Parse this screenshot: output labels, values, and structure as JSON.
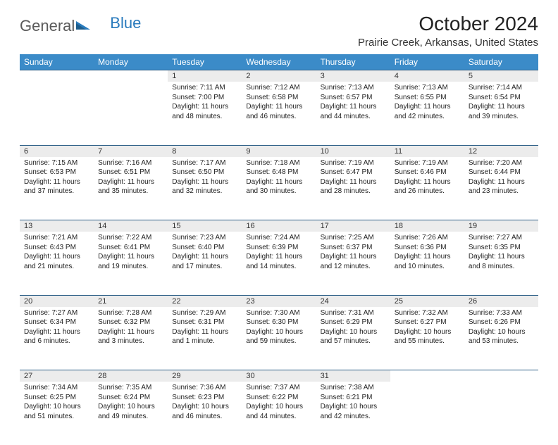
{
  "logo": {
    "part1": "General",
    "part2": "Blue"
  },
  "title": "October 2024",
  "location": "Prairie Creek, Arkansas, United States",
  "colors": {
    "header_bg": "#3b8bc8",
    "header_text": "#ffffff",
    "daynum_bg": "#ececec",
    "rule": "#2d5f87",
    "logo_gray": "#5a5a5a",
    "logo_blue": "#2a7bbd"
  },
  "weekdays": [
    "Sunday",
    "Monday",
    "Tuesday",
    "Wednesday",
    "Thursday",
    "Friday",
    "Saturday"
  ],
  "weeks": [
    [
      null,
      null,
      {
        "n": "1",
        "sr": "Sunrise: 7:11 AM",
        "ss": "Sunset: 7:00 PM",
        "dl": "Daylight: 11 hours and 48 minutes."
      },
      {
        "n": "2",
        "sr": "Sunrise: 7:12 AM",
        "ss": "Sunset: 6:58 PM",
        "dl": "Daylight: 11 hours and 46 minutes."
      },
      {
        "n": "3",
        "sr": "Sunrise: 7:13 AM",
        "ss": "Sunset: 6:57 PM",
        "dl": "Daylight: 11 hours and 44 minutes."
      },
      {
        "n": "4",
        "sr": "Sunrise: 7:13 AM",
        "ss": "Sunset: 6:55 PM",
        "dl": "Daylight: 11 hours and 42 minutes."
      },
      {
        "n": "5",
        "sr": "Sunrise: 7:14 AM",
        "ss": "Sunset: 6:54 PM",
        "dl": "Daylight: 11 hours and 39 minutes."
      }
    ],
    [
      {
        "n": "6",
        "sr": "Sunrise: 7:15 AM",
        "ss": "Sunset: 6:53 PM",
        "dl": "Daylight: 11 hours and 37 minutes."
      },
      {
        "n": "7",
        "sr": "Sunrise: 7:16 AM",
        "ss": "Sunset: 6:51 PM",
        "dl": "Daylight: 11 hours and 35 minutes."
      },
      {
        "n": "8",
        "sr": "Sunrise: 7:17 AM",
        "ss": "Sunset: 6:50 PM",
        "dl": "Daylight: 11 hours and 32 minutes."
      },
      {
        "n": "9",
        "sr": "Sunrise: 7:18 AM",
        "ss": "Sunset: 6:48 PM",
        "dl": "Daylight: 11 hours and 30 minutes."
      },
      {
        "n": "10",
        "sr": "Sunrise: 7:19 AM",
        "ss": "Sunset: 6:47 PM",
        "dl": "Daylight: 11 hours and 28 minutes."
      },
      {
        "n": "11",
        "sr": "Sunrise: 7:19 AM",
        "ss": "Sunset: 6:46 PM",
        "dl": "Daylight: 11 hours and 26 minutes."
      },
      {
        "n": "12",
        "sr": "Sunrise: 7:20 AM",
        "ss": "Sunset: 6:44 PM",
        "dl": "Daylight: 11 hours and 23 minutes."
      }
    ],
    [
      {
        "n": "13",
        "sr": "Sunrise: 7:21 AM",
        "ss": "Sunset: 6:43 PM",
        "dl": "Daylight: 11 hours and 21 minutes."
      },
      {
        "n": "14",
        "sr": "Sunrise: 7:22 AM",
        "ss": "Sunset: 6:41 PM",
        "dl": "Daylight: 11 hours and 19 minutes."
      },
      {
        "n": "15",
        "sr": "Sunrise: 7:23 AM",
        "ss": "Sunset: 6:40 PM",
        "dl": "Daylight: 11 hours and 17 minutes."
      },
      {
        "n": "16",
        "sr": "Sunrise: 7:24 AM",
        "ss": "Sunset: 6:39 PM",
        "dl": "Daylight: 11 hours and 14 minutes."
      },
      {
        "n": "17",
        "sr": "Sunrise: 7:25 AM",
        "ss": "Sunset: 6:37 PM",
        "dl": "Daylight: 11 hours and 12 minutes."
      },
      {
        "n": "18",
        "sr": "Sunrise: 7:26 AM",
        "ss": "Sunset: 6:36 PM",
        "dl": "Daylight: 11 hours and 10 minutes."
      },
      {
        "n": "19",
        "sr": "Sunrise: 7:27 AM",
        "ss": "Sunset: 6:35 PM",
        "dl": "Daylight: 11 hours and 8 minutes."
      }
    ],
    [
      {
        "n": "20",
        "sr": "Sunrise: 7:27 AM",
        "ss": "Sunset: 6:34 PM",
        "dl": "Daylight: 11 hours and 6 minutes."
      },
      {
        "n": "21",
        "sr": "Sunrise: 7:28 AM",
        "ss": "Sunset: 6:32 PM",
        "dl": "Daylight: 11 hours and 3 minutes."
      },
      {
        "n": "22",
        "sr": "Sunrise: 7:29 AM",
        "ss": "Sunset: 6:31 PM",
        "dl": "Daylight: 11 hours and 1 minute."
      },
      {
        "n": "23",
        "sr": "Sunrise: 7:30 AM",
        "ss": "Sunset: 6:30 PM",
        "dl": "Daylight: 10 hours and 59 minutes."
      },
      {
        "n": "24",
        "sr": "Sunrise: 7:31 AM",
        "ss": "Sunset: 6:29 PM",
        "dl": "Daylight: 10 hours and 57 minutes."
      },
      {
        "n": "25",
        "sr": "Sunrise: 7:32 AM",
        "ss": "Sunset: 6:27 PM",
        "dl": "Daylight: 10 hours and 55 minutes."
      },
      {
        "n": "26",
        "sr": "Sunrise: 7:33 AM",
        "ss": "Sunset: 6:26 PM",
        "dl": "Daylight: 10 hours and 53 minutes."
      }
    ],
    [
      {
        "n": "27",
        "sr": "Sunrise: 7:34 AM",
        "ss": "Sunset: 6:25 PM",
        "dl": "Daylight: 10 hours and 51 minutes."
      },
      {
        "n": "28",
        "sr": "Sunrise: 7:35 AM",
        "ss": "Sunset: 6:24 PM",
        "dl": "Daylight: 10 hours and 49 minutes."
      },
      {
        "n": "29",
        "sr": "Sunrise: 7:36 AM",
        "ss": "Sunset: 6:23 PM",
        "dl": "Daylight: 10 hours and 46 minutes."
      },
      {
        "n": "30",
        "sr": "Sunrise: 7:37 AM",
        "ss": "Sunset: 6:22 PM",
        "dl": "Daylight: 10 hours and 44 minutes."
      },
      {
        "n": "31",
        "sr": "Sunrise: 7:38 AM",
        "ss": "Sunset: 6:21 PM",
        "dl": "Daylight: 10 hours and 42 minutes."
      },
      null,
      null
    ]
  ]
}
